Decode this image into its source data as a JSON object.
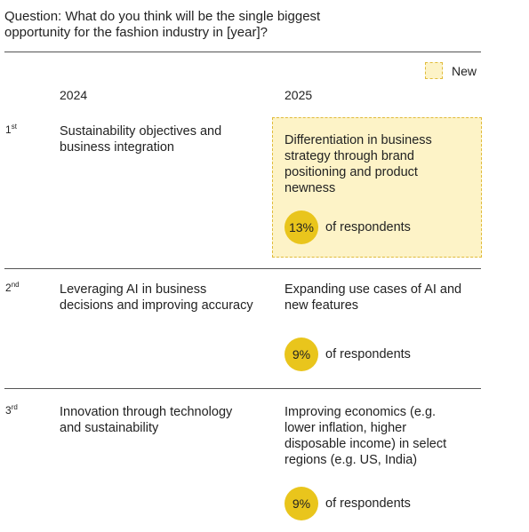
{
  "question": "Question: What do you think will be the single biggest opportunity for the fashion industry in [year]?",
  "legend": {
    "label": "New"
  },
  "columns": {
    "col1": "2024",
    "col2": "2025"
  },
  "colors": {
    "highlight_fill": "#fdf3c7",
    "highlight_border": "#e0bb3a",
    "badge": "#e9c51c"
  },
  "rows": [
    {
      "rank_num": "1",
      "rank_suffix": "st",
      "item_2024": "Sustainability objectives and business integration",
      "item_2025": "Differentiation in business strategy through brand positioning and product newness",
      "percent": "13%",
      "respondents_label": "of respondents",
      "is_new": true
    },
    {
      "rank_num": "2",
      "rank_suffix": "nd",
      "item_2024": "Leveraging AI in business decisions and improving accuracy",
      "item_2025": "Expanding use cases of AI and new features",
      "percent": "9%",
      "respondents_label": "of respondents",
      "is_new": false
    },
    {
      "rank_num": "3",
      "rank_suffix": "rd",
      "item_2024": "Innovation through technology and sustainability",
      "item_2025": "Improving economics (e.g. lower inflation, higher disposable income) in select regions (e.g. US, India)",
      "percent": "9%",
      "respondents_label": "of respondents",
      "is_new": false
    }
  ]
}
